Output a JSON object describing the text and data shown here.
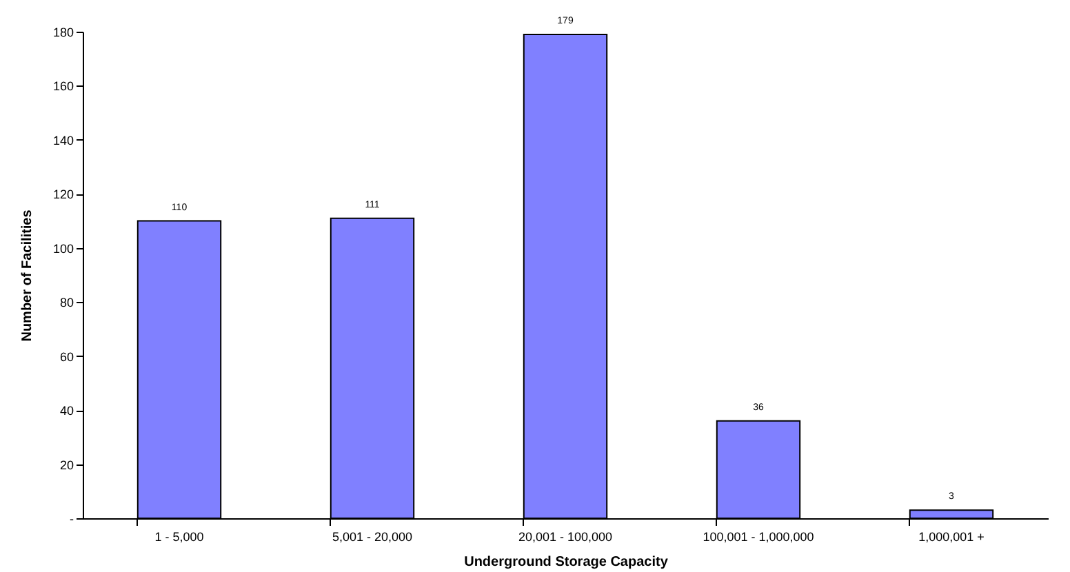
{
  "chart_data": {
    "type": "bar",
    "xlabel": "Underground Storage Capacity",
    "ylabel": "Number of Facilities",
    "categories": [
      "1 - 5,000",
      "5,001 - 20,000",
      "20,001 - 100,000",
      "100,001 - 1,000,000",
      "1,000,001 +"
    ],
    "values": [
      110,
      111,
      179,
      36,
      3
    ],
    "color": "#8080ff",
    "ylim": [
      0,
      180
    ],
    "yticks": [
      {
        "value": 0,
        "label": "-"
      },
      20,
      40,
      60,
      80,
      100,
      120,
      140,
      160,
      180
    ],
    "grid": false,
    "data_labels": true
  }
}
